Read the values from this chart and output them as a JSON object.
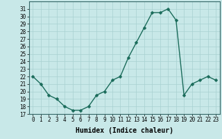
{
  "x": [
    0,
    1,
    2,
    3,
    4,
    5,
    6,
    7,
    8,
    9,
    10,
    11,
    12,
    13,
    14,
    15,
    16,
    17,
    18,
    19,
    20,
    21,
    22,
    23
  ],
  "y": [
    22,
    21,
    19.5,
    19,
    18,
    17.5,
    17.5,
    18,
    19.5,
    20,
    21.5,
    22,
    24.5,
    26.5,
    28.5,
    30.5,
    30.5,
    31,
    29.5,
    19.5,
    21,
    21.5,
    22,
    21.5
  ],
  "line_color": "#1a6b5a",
  "marker_color": "#1a6b5a",
  "bg_color": "#c8e8e8",
  "grid_color": "#a8d0d0",
  "xlabel": "Humidex (Indice chaleur)",
  "ylim": [
    17,
    32
  ],
  "xlim": [
    -0.5,
    23.5
  ],
  "yticks": [
    17,
    18,
    19,
    20,
    21,
    22,
    23,
    24,
    25,
    26,
    27,
    28,
    29,
    30,
    31
  ],
  "xticks": [
    0,
    1,
    2,
    3,
    4,
    5,
    6,
    7,
    8,
    9,
    10,
    11,
    12,
    13,
    14,
    15,
    16,
    17,
    18,
    19,
    20,
    21,
    22,
    23
  ],
  "marker_size": 2.5,
  "line_width": 1.0,
  "xlabel_fontsize": 7,
  "tick_fontsize": 5.5
}
